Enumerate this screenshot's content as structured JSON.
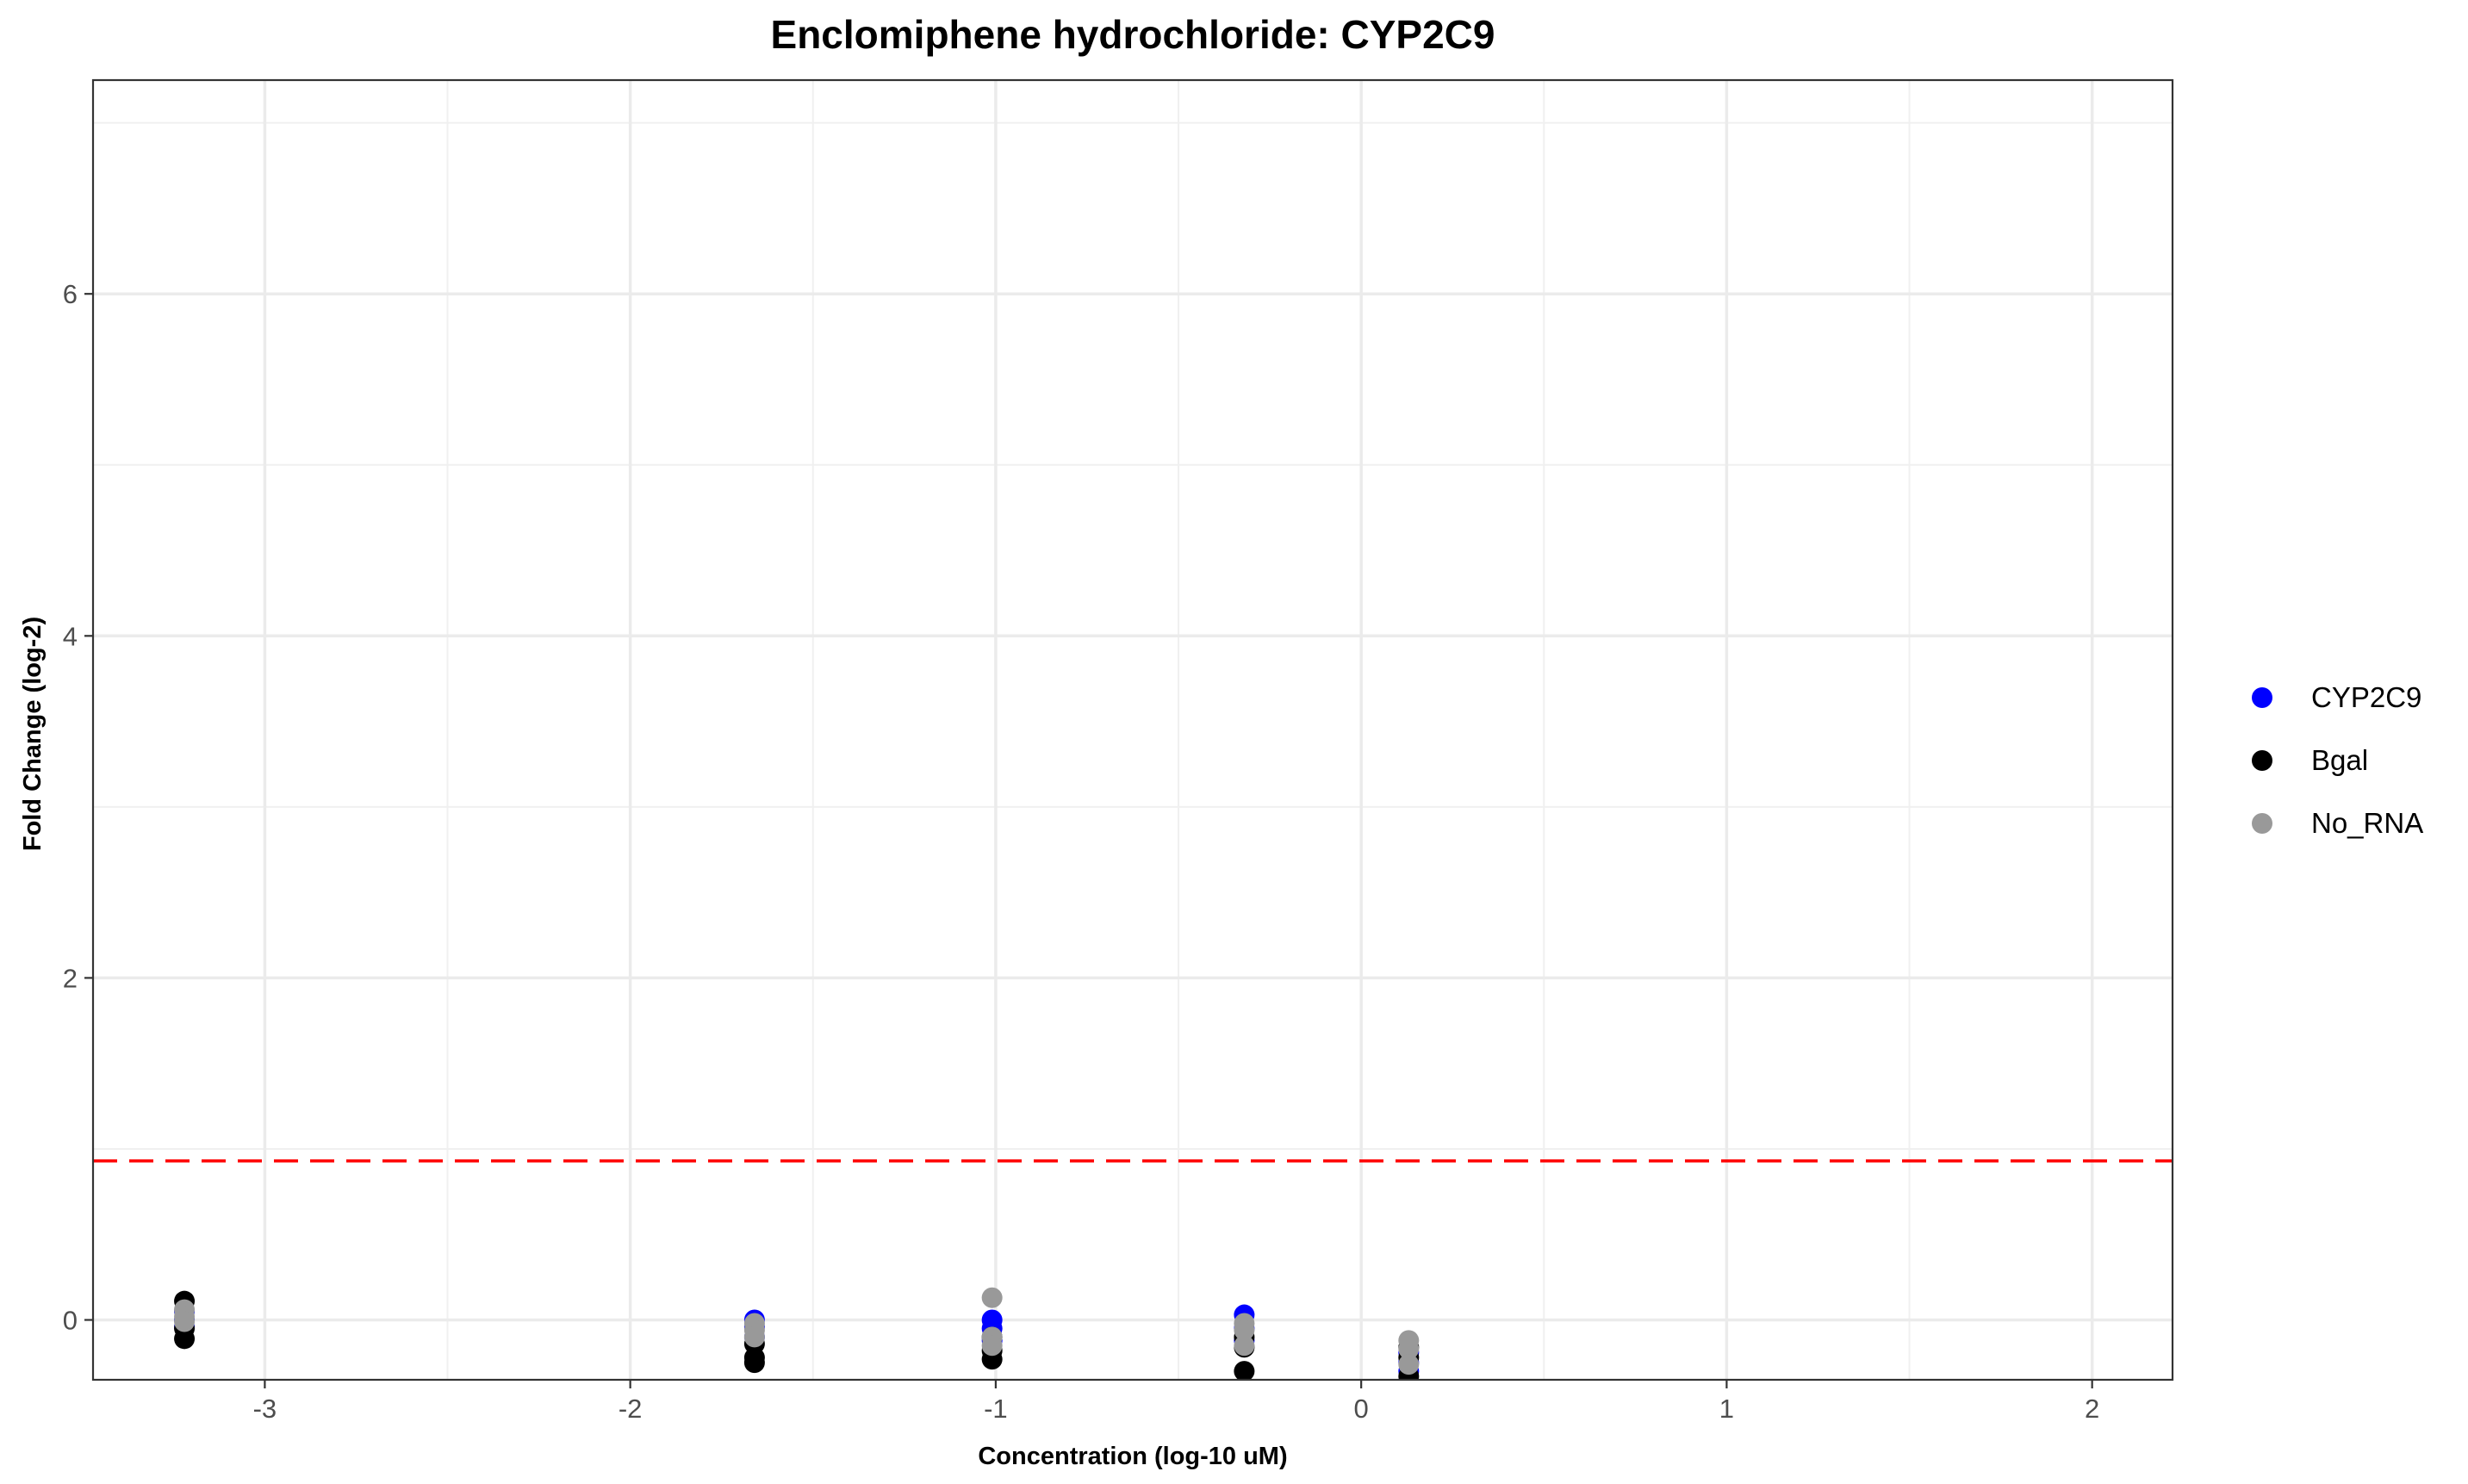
{
  "chart_data": {
    "type": "scatter",
    "title": "Enclomiphene hydrochloride: CYP2C9",
    "xlabel": "Concentration (log-10 uM)",
    "ylabel": "Fold Change (log-2)",
    "xlim": [
      -3.47,
      2.22
    ],
    "ylim": [
      -0.35,
      7.25
    ],
    "x_ticks": [
      -3,
      -2,
      -1,
      0,
      1,
      2
    ],
    "y_ticks": [
      0,
      2,
      4,
      6
    ],
    "x_minor_gridlines": [
      -2.5,
      -1.5,
      -0.5,
      0.5,
      1.5
    ],
    "y_minor_gridlines": [
      1,
      3,
      5,
      7
    ],
    "grid": true,
    "legend_position": "right",
    "threshold_line": {
      "y": 0.93,
      "color": "#ff0000",
      "style": "dashed"
    },
    "series": [
      {
        "name": "CYP2C9",
        "color": "#0000ff",
        "points": [
          {
            "x": -3.22,
            "y": 0.05
          },
          {
            "x": -3.22,
            "y": 0.0
          },
          {
            "x": -3.22,
            "y": -0.04
          },
          {
            "x": -1.66,
            "y": 0.0
          },
          {
            "x": -1.66,
            "y": -0.04
          },
          {
            "x": -1.66,
            "y": -0.1
          },
          {
            "x": -1.01,
            "y": 0.0
          },
          {
            "x": -1.01,
            "y": -0.05
          },
          {
            "x": -1.01,
            "y": -0.12
          },
          {
            "x": -0.32,
            "y": 0.03
          },
          {
            "x": -0.32,
            "y": -0.05
          },
          {
            "x": -0.32,
            "y": -0.12
          },
          {
            "x": 0.13,
            "y": -0.3
          },
          {
            "x": 0.13,
            "y": -0.25
          },
          {
            "x": 0.13,
            "y": -0.19
          }
        ]
      },
      {
        "name": "Bgal",
        "color": "#000000",
        "points": [
          {
            "x": -3.22,
            "y": 0.11
          },
          {
            "x": -3.22,
            "y": -0.05
          },
          {
            "x": -3.22,
            "y": -0.11
          },
          {
            "x": -1.66,
            "y": -0.14
          },
          {
            "x": -1.66,
            "y": -0.22
          },
          {
            "x": -1.66,
            "y": -0.25
          },
          {
            "x": -1.01,
            "y": -0.1
          },
          {
            "x": -1.01,
            "y": -0.18
          },
          {
            "x": -1.01,
            "y": -0.23
          },
          {
            "x": -0.32,
            "y": -0.1
          },
          {
            "x": -0.32,
            "y": -0.16
          },
          {
            "x": -0.32,
            "y": -0.3
          },
          {
            "x": 0.13,
            "y": -0.33
          },
          {
            "x": 0.13,
            "y": -0.22
          },
          {
            "x": 0.13,
            "y": -0.16
          }
        ]
      },
      {
        "name": "No_RNA",
        "color": "#999999",
        "points": [
          {
            "x": -3.22,
            "y": 0.06
          },
          {
            "x": -3.22,
            "y": 0.02
          },
          {
            "x": -3.22,
            "y": -0.01
          },
          {
            "x": -1.66,
            "y": -0.02
          },
          {
            "x": -1.66,
            "y": -0.06
          },
          {
            "x": -1.66,
            "y": -0.1
          },
          {
            "x": -1.01,
            "y": 0.13
          },
          {
            "x": -1.01,
            "y": -0.1
          },
          {
            "x": -1.01,
            "y": -0.15
          },
          {
            "x": -0.32,
            "y": -0.02
          },
          {
            "x": -0.32,
            "y": -0.06
          },
          {
            "x": -0.32,
            "y": -0.15
          },
          {
            "x": 0.13,
            "y": -0.12
          },
          {
            "x": 0.13,
            "y": -0.17
          },
          {
            "x": 0.13,
            "y": -0.26
          }
        ]
      }
    ]
  }
}
